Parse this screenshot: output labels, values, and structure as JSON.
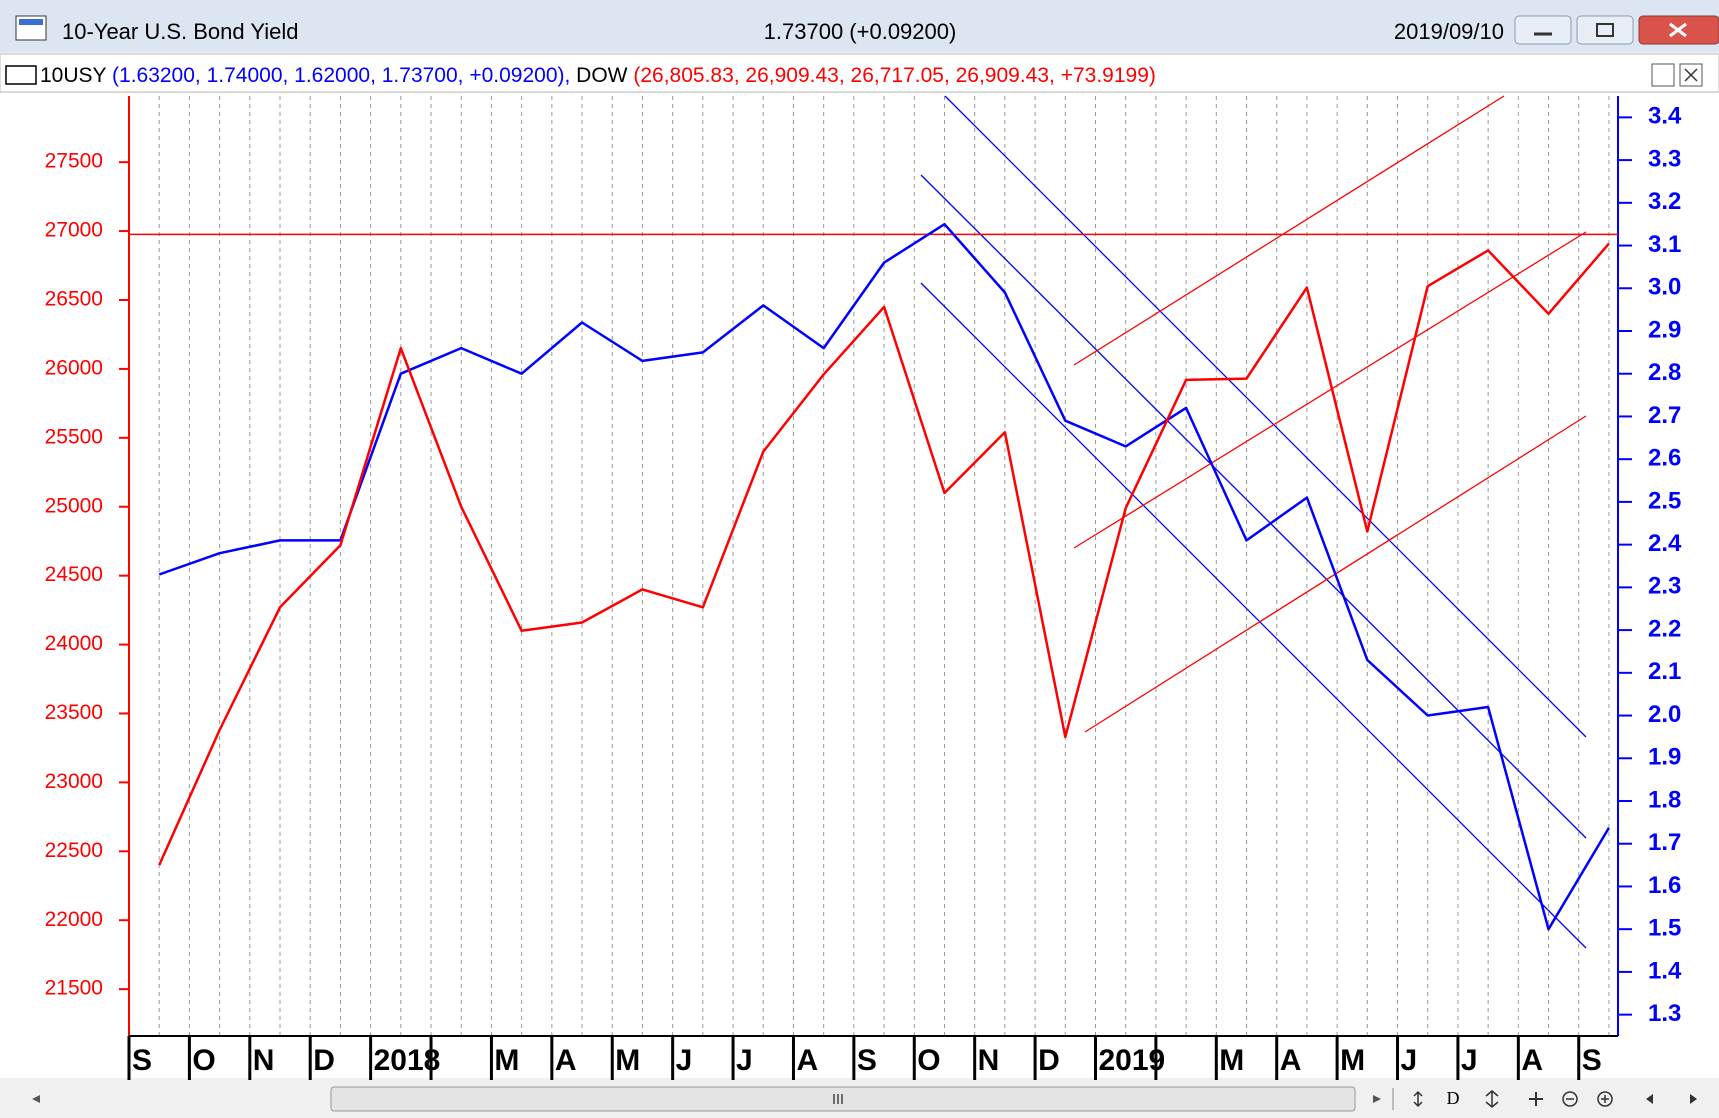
{
  "window": {
    "title": "10-Year U.S. Bond Yield",
    "quote": "1.73700 (+0.09200)",
    "date": "2019/09/10",
    "toolbar_label": "D"
  },
  "chart_data": {
    "type": "line",
    "categories": [
      "S",
      "O",
      "N",
      "D",
      "2018",
      null,
      "M",
      "A",
      "M",
      "J",
      "J",
      "A",
      "S",
      "O",
      "N",
      "D",
      "2019",
      null,
      "M",
      "A",
      "M",
      "J",
      "J",
      "A",
      "S"
    ],
    "series": [
      {
        "name": "10USY",
        "quote": "(1.63200, 1.74000, 1.62000, 1.73700, +0.09200),",
        "color": "#0000ff",
        "axis": "y2",
        "values": [
          2.33,
          2.38,
          2.41,
          2.41,
          2.8,
          2.86,
          2.8,
          2.92,
          2.83,
          2.85,
          2.96,
          2.86,
          3.06,
          3.15,
          2.99,
          2.69,
          2.63,
          2.72,
          2.41,
          2.51,
          2.13,
          2.0,
          2.02,
          1.5,
          1.737
        ]
      },
      {
        "name": "DOW",
        "quote": "(26,805.83, 26,909.43, 26,717.05, 26,909.43, +73.9199)",
        "color": "#ff0000",
        "axis": "y",
        "values": [
          22400,
          23380,
          24270,
          24720,
          26150,
          25000,
          24100,
          24160,
          24400,
          24270,
          25400,
          25960,
          26450,
          25100,
          25540,
          23330,
          24990,
          25920,
          25930,
          26590,
          24820,
          26600,
          26860,
          26400,
          26909
        ]
      }
    ],
    "ylim": [
      21160,
      27980
    ],
    "yticks": [
      21500,
      22000,
      22500,
      23000,
      23500,
      24000,
      24500,
      25000,
      25500,
      26000,
      26500,
      27000,
      27500
    ],
    "y2lim": [
      1.25,
      3.45
    ],
    "y2ticks": [
      1.3,
      1.4,
      1.5,
      1.6,
      1.7,
      1.8,
      1.9,
      {
        "value": 2,
        "label": "2.0"
      },
      2.1,
      2.2,
      2.3,
      2.4,
      2.5,
      2.6,
      2.7,
      2.8,
      2.9,
      {
        "value": 3,
        "label": "3.0"
      },
      3.1,
      3.2,
      3.3,
      3.4
    ],
    "reference_line": {
      "value": 26976,
      "color": "#ff0000"
    },
    "grid": false,
    "xgrid": true
  }
}
